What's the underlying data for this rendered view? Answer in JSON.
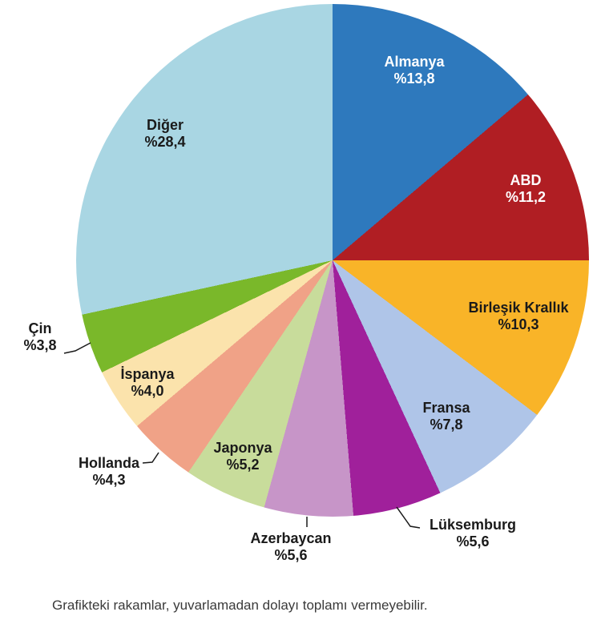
{
  "chart_data": {
    "type": "pie",
    "title": "",
    "start_angle_deg": 0,
    "direction": "clockwise",
    "unit": "percent",
    "slices": [
      {
        "label": "Almanya",
        "value": 13.8,
        "display": "%13,8",
        "color": "#2E79BD",
        "label_color": "#FFFFFF"
      },
      {
        "label": "ABD",
        "value": 11.2,
        "display": "%11,2",
        "color": "#B01E23",
        "label_color": "#FFFFFF"
      },
      {
        "label": "Birleşik Krallık",
        "value": 10.3,
        "display": "%10,3",
        "color": "#F9B428",
        "label_color": "#1A1A1A"
      },
      {
        "label": "Fransa",
        "value": 7.8,
        "display": "%7,8",
        "color": "#AFC5E8",
        "label_color": "#1A1A1A"
      },
      {
        "label": "Lüksemburg",
        "value": 5.6,
        "display": "%5,6",
        "color": "#A0209B",
        "label_color": "#1A1A1A"
      },
      {
        "label": "Azerbaycan",
        "value": 5.6,
        "display": "%5,6",
        "color": "#C795C8",
        "label_color": "#1A1A1A"
      },
      {
        "label": "Japonya",
        "value": 5.2,
        "display": "%5,2",
        "color": "#C8DC9B",
        "label_color": "#1A1A1A"
      },
      {
        "label": "Hollanda",
        "value": 4.3,
        "display": "%4,3",
        "color": "#F0A287",
        "label_color": "#1A1A1A"
      },
      {
        "label": "İspanya",
        "value": 4.0,
        "display": "%4,0",
        "color": "#FBE3AC",
        "label_color": "#1A1A1A"
      },
      {
        "label": "Çin",
        "value": 3.8,
        "display": "%3,8",
        "color": "#7AB82A",
        "label_color": "#1A1A1A"
      },
      {
        "label": "Diğer",
        "value": 28.4,
        "display": "%28,4",
        "color": "#A9D6E3",
        "label_color": "#1A1A1A"
      }
    ],
    "legend": "none",
    "footnote": "Grafikteki rakamlar, yuvarlamadan dolayı toplamı vermeyebilir.",
    "leader_line_color": "#1A1A1A"
  }
}
